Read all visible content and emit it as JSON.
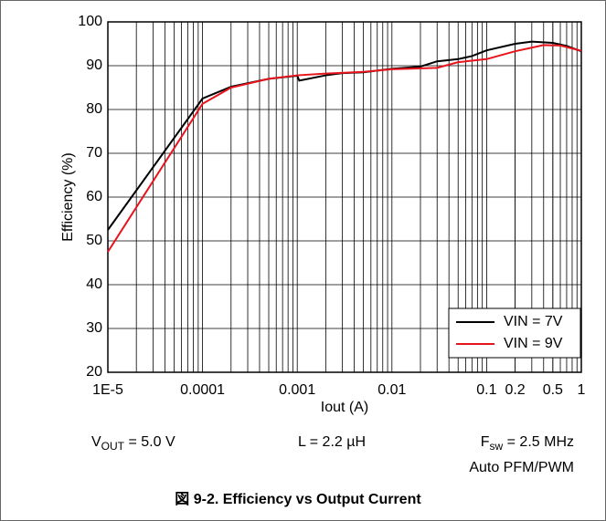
{
  "chart_data": {
    "type": "line",
    "xlabel": "Iout (A)",
    "ylabel": "Efficiency (%)",
    "xscale": "log",
    "xlim": [
      1e-05,
      1
    ],
    "xticks": [
      {
        "value": 1e-05,
        "label": "1E-5"
      },
      0.0001,
      0.001,
      0.01,
      0.1,
      0.2,
      0.5,
      1
    ],
    "ylim": [
      20,
      100
    ],
    "yticks": [
      20,
      30,
      40,
      50,
      60,
      70,
      80,
      90,
      100
    ],
    "grid": true,
    "legend": "lower right",
    "series": [
      {
        "name": "VIN = 7V",
        "color": "#000000",
        "x": [
          1e-05,
          0.0001,
          0.0002,
          0.0005,
          0.001,
          0.00105,
          0.002,
          0.003,
          0.005,
          0.01,
          0.02,
          0.03,
          0.05,
          0.07,
          0.1,
          0.2,
          0.3,
          0.5,
          0.7,
          1
        ],
        "values": [
          52.5,
          82.5,
          85.2,
          87,
          87.7,
          86.6,
          87.8,
          88.3,
          88.5,
          89.3,
          89.8,
          91,
          91.5,
          92.2,
          93.5,
          95,
          95.5,
          95.2,
          94.5,
          93.3
        ]
      },
      {
        "name": "VIN = 9V",
        "color": "#e8141c",
        "x": [
          1e-05,
          0.0001,
          0.0002,
          0.0005,
          0.001,
          0.002,
          0.005,
          0.01,
          0.03,
          0.05,
          0.1,
          0.2,
          0.4,
          0.6,
          1
        ],
        "values": [
          47.5,
          81.3,
          85,
          87,
          87.8,
          88.2,
          88.6,
          89.2,
          89.5,
          90.8,
          91.5,
          93.3,
          94.7,
          94.6,
          93.4
        ]
      }
    ],
    "annotations": [
      [
        "V",
        "OUT",
        " = 5.0 V"
      ],
      [
        "L = 2.2 µH"
      ],
      [
        "F",
        "sw",
        " = 2.5 MHz"
      ],
      [
        "Auto PFM/PWM"
      ]
    ],
    "caption": "図 9-2. Efficiency vs Output Current"
  }
}
